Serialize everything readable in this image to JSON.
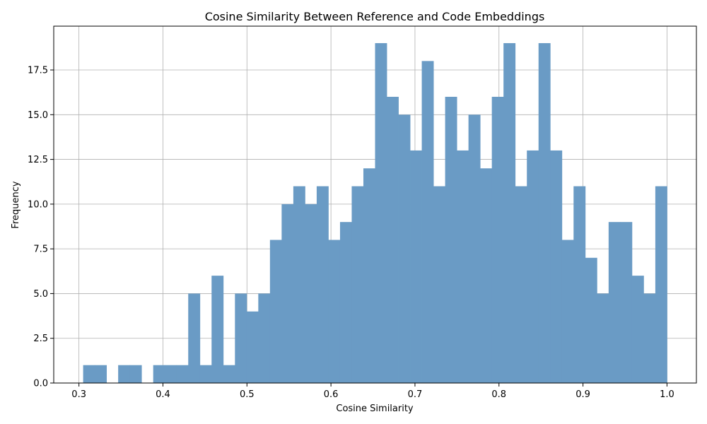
{
  "chart_data": {
    "type": "bar",
    "title": "Cosine Similarity Between Reference and Code Embeddings",
    "xlabel": "Cosine Similarity",
    "ylabel": "Frequency",
    "xlim": [
      0.27,
      1.035
    ],
    "ylim": [
      0,
      19.95
    ],
    "grid": true,
    "bar_color": "#6a9bc5",
    "x_ticks": [
      "0.3",
      "0.4",
      "0.5",
      "0.6",
      "0.7",
      "0.8",
      "0.9",
      "1.0"
    ],
    "y_ticks": [
      "0.0",
      "2.5",
      "5.0",
      "7.5",
      "10.0",
      "12.5",
      "15.0",
      "17.5"
    ],
    "bin_range": [
      0.305,
      1.0
    ],
    "values": [
      1,
      1,
      0,
      1,
      1,
      0,
      1,
      1,
      1,
      5,
      1,
      6,
      1,
      5,
      4,
      5,
      8,
      10,
      11,
      10,
      11,
      8,
      9,
      11,
      12,
      19,
      16,
      15,
      13,
      18,
      11,
      16,
      13,
      15,
      12,
      16,
      19,
      11,
      13,
      19,
      13,
      8,
      11,
      7,
      5,
      9,
      9,
      6,
      5,
      11
    ]
  }
}
